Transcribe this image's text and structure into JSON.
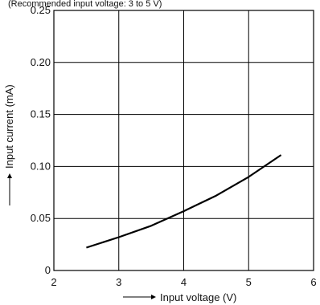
{
  "chart_data": {
    "type": "line",
    "top_note": "(Recommended input voltage: 3 to 5 V)",
    "xlabel": "Input voltage (V)",
    "ylabel": "Input current (mA)",
    "xlim": [
      2,
      6
    ],
    "ylim": [
      0,
      0.25
    ],
    "x_ticks": [
      2,
      3,
      4,
      5,
      6
    ],
    "y_ticks": [
      0,
      0.05,
      0.1,
      0.15,
      0.2,
      0.25
    ],
    "x_tick_labels": [
      "2",
      "3",
      "4",
      "5",
      "6"
    ],
    "y_tick_labels": [
      "0",
      "0.05",
      "0.10",
      "0.15",
      "0.20",
      "0.25"
    ],
    "grid": true,
    "series": [
      {
        "x": [
          2.5,
          3.0,
          3.5,
          4.0,
          4.5,
          5.0,
          5.5
        ],
        "y": [
          0.022,
          0.032,
          0.043,
          0.057,
          0.072,
          0.09,
          0.111
        ],
        "color": "#000000"
      }
    ]
  }
}
